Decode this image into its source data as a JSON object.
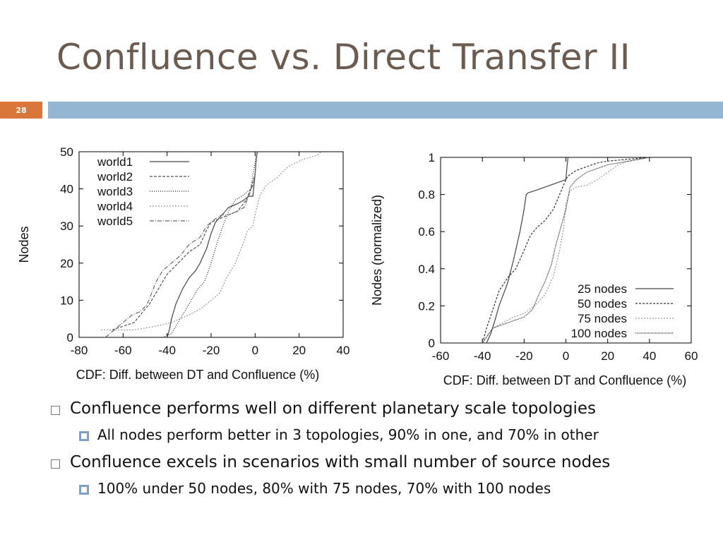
{
  "slide": {
    "title": "Confluence vs. Direct Transfer II",
    "number": "28",
    "accent_color": "#d9763a",
    "bar_color": "#94b6d2",
    "title_color": "#6b5b50"
  },
  "bullets": [
    {
      "text": "Confluence performs well on different planetary scale topologies",
      "sub": "All nodes perform better in 3 topologies, 90% in one,  and 70% in other"
    },
    {
      "text": "Confluence excels in scenarios with small number of source nodes",
      "sub": "100% under 50 nodes, 80% with 75 nodes,  70% with 100 nodes"
    }
  ],
  "chart_data": [
    {
      "type": "line",
      "xlabel": "CDF: Diff. between DT and Confluence (%)",
      "ylabel": "Nodes",
      "xlim": [
        -80,
        40
      ],
      "ylim": [
        0,
        50
      ],
      "xticks": [
        "-80",
        "-60",
        "-40",
        "-20",
        "0",
        "20",
        "40"
      ],
      "yticks": [
        "0",
        "10",
        "20",
        "30",
        "40",
        "50"
      ],
      "legend_position": "top-left",
      "series": [
        {
          "name": "world1",
          "dash": "",
          "color": "#444444",
          "x": [
            -40,
            -39,
            -38,
            -36,
            -33,
            -30,
            -27,
            -25,
            -22,
            -20,
            -18,
            -15,
            -12,
            -8,
            -5,
            -3,
            -1,
            0,
            0.5,
            1
          ],
          "y": [
            0,
            2,
            5,
            9,
            13,
            16,
            18,
            20,
            24,
            28,
            31,
            33,
            35,
            36,
            37,
            38,
            38,
            44,
            48,
            50
          ]
        },
        {
          "name": "world2",
          "dash": "4 2",
          "color": "#555555",
          "x": [
            -65,
            -55,
            -48,
            -44,
            -40,
            -35,
            -30,
            -25,
            -22,
            -20,
            -16,
            -12,
            -8,
            -4,
            -2,
            0,
            0.5,
            1
          ],
          "y": [
            2,
            4,
            9,
            13,
            17,
            20,
            23,
            25,
            29,
            31,
            32,
            33,
            34,
            37,
            40,
            44,
            48,
            50
          ]
        },
        {
          "name": "world3",
          "dash": "1 2",
          "color": "#222222",
          "x": [
            -42,
            -38,
            -36,
            -33,
            -30,
            -26,
            -23,
            -20,
            -17,
            -14,
            -12,
            -9,
            -6,
            -4,
            -2,
            -1,
            0,
            0.5,
            1
          ],
          "y": [
            0,
            1,
            3,
            6,
            9,
            13,
            15,
            20,
            26,
            31,
            34,
            37,
            38,
            39,
            40,
            44,
            47,
            49,
            50
          ]
        },
        {
          "name": "world4",
          "dash": "2 2",
          "color": "#999999",
          "x": [
            -70,
            -55,
            -45,
            -38,
            -30,
            -24,
            -20,
            -16,
            -13,
            -9,
            -7,
            -5,
            -4,
            -3,
            -1,
            0,
            2,
            5,
            10,
            15,
            22,
            28,
            30
          ],
          "y": [
            2,
            2,
            3,
            4,
            6,
            8,
            10,
            12,
            16,
            20,
            23,
            26,
            28,
            29,
            30,
            33,
            38,
            41,
            43,
            46,
            48,
            49,
            50
          ]
        },
        {
          "name": "world5",
          "dash": "6 2 1 2",
          "color": "#666666",
          "x": [
            -68,
            -64,
            -60,
            -56,
            -52,
            -49,
            -47,
            -45,
            -42,
            -38,
            -34,
            -30,
            -25,
            -22,
            -18,
            -15,
            -12,
            -8,
            -5,
            -3,
            -1,
            0,
            0.5,
            1
          ],
          "y": [
            0,
            2,
            4,
            6,
            7,
            9,
            12,
            15,
            18,
            20,
            22,
            25,
            27,
            30,
            32,
            33,
            33,
            34,
            35,
            38,
            41,
            44,
            48,
            50
          ]
        }
      ]
    },
    {
      "type": "line",
      "xlabel": "CDF: Diff. between DT and Confluence (%)",
      "ylabel": "Nodes (normalized)",
      "xlim": [
        -60,
        60
      ],
      "ylim": [
        0,
        1
      ],
      "xticks": [
        "-60",
        "-40",
        "-20",
        "0",
        "20",
        "40",
        "60"
      ],
      "yticks": [
        "0",
        "0.2",
        "0.4",
        "0.6",
        "0.8",
        "1"
      ],
      "legend_position": "bottom-right",
      "series": [
        {
          "name": "25 nodes",
          "dash": "",
          "color": "#444444",
          "x": [
            -38,
            -36,
            -34,
            -32,
            -28,
            -25,
            -22,
            -20,
            -19,
            -18,
            -15,
            -10,
            -5,
            0,
            0.5,
            1
          ],
          "y": [
            0,
            0.05,
            0.12,
            0.2,
            0.32,
            0.45,
            0.6,
            0.72,
            0.8,
            0.81,
            0.82,
            0.84,
            0.86,
            0.88,
            0.95,
            1.0
          ]
        },
        {
          "name": "50 nodes",
          "dash": "3 2",
          "color": "#333333",
          "x": [
            -40,
            -38,
            -35,
            -32,
            -28,
            -24,
            -20,
            -17,
            -14,
            -10,
            -6,
            -3,
            0,
            1,
            5,
            10,
            15,
            20,
            30,
            40
          ],
          "y": [
            0,
            0.08,
            0.18,
            0.28,
            0.35,
            0.4,
            0.5,
            0.58,
            0.62,
            0.66,
            0.72,
            0.8,
            0.88,
            0.9,
            0.93,
            0.95,
            0.97,
            0.98,
            0.99,
            1.0
          ]
        },
        {
          "name": "75 nodes",
          "dash": "2 2",
          "color": "#999999",
          "x": [
            -40,
            -35,
            -30,
            -25,
            -20,
            -15,
            -10,
            -6,
            -3,
            -1,
            0,
            2,
            5,
            10,
            15,
            20,
            25,
            30,
            40
          ],
          "y": [
            0,
            0.08,
            0.11,
            0.14,
            0.16,
            0.2,
            0.26,
            0.36,
            0.5,
            0.62,
            0.75,
            0.82,
            0.84,
            0.85,
            0.88,
            0.92,
            0.96,
            0.98,
            1.0
          ]
        },
        {
          "name": "100 nodes",
          "dash": "1 1",
          "color": "#222222",
          "x": [
            -40,
            -35,
            -30,
            -25,
            -20,
            -16,
            -13,
            -10,
            -7,
            -5,
            -3,
            -1,
            0,
            2,
            5,
            10,
            20,
            30,
            40
          ],
          "y": [
            0,
            0.08,
            0.1,
            0.12,
            0.14,
            0.18,
            0.26,
            0.33,
            0.42,
            0.52,
            0.6,
            0.68,
            0.72,
            0.84,
            0.88,
            0.92,
            0.96,
            0.98,
            1.0
          ]
        }
      ]
    }
  ]
}
